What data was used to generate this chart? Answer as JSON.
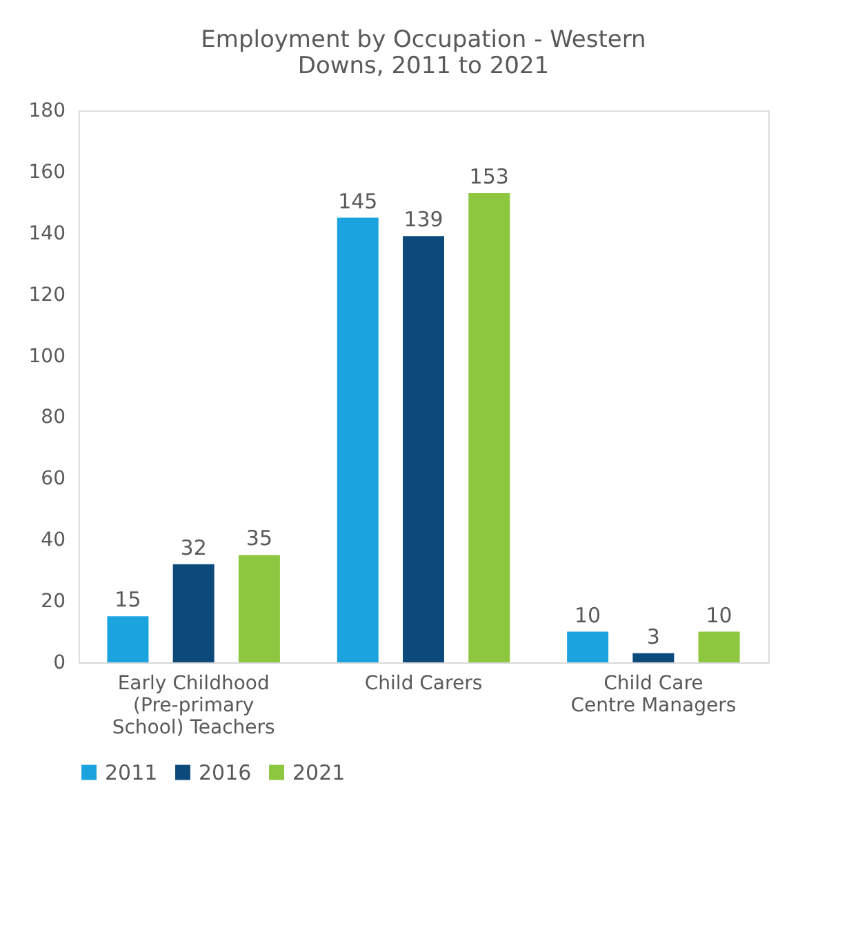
{
  "chart_data": {
    "type": "bar",
    "title": "Employment by Occupation - Western Downs, 2011 to 2021",
    "categories": [
      "Early Childhood (Pre-primary School) Teachers",
      "Child Carers",
      "Child Care Centre Managers"
    ],
    "series": [
      {
        "name": "2011",
        "color": "#1ba3e0",
        "values": [
          15,
          145,
          10
        ]
      },
      {
        "name": "2016",
        "color": "#0c4a7c",
        "values": [
          32,
          139,
          3
        ]
      },
      {
        "name": "2021",
        "color": "#8dc63f",
        "values": [
          35,
          153,
          10
        ]
      }
    ],
    "ylim": [
      0,
      180
    ],
    "yticks": [
      0,
      20,
      40,
      60,
      80,
      100,
      120,
      140,
      160,
      180
    ],
    "data_labels": true,
    "grid": false,
    "legend": "bottom"
  }
}
